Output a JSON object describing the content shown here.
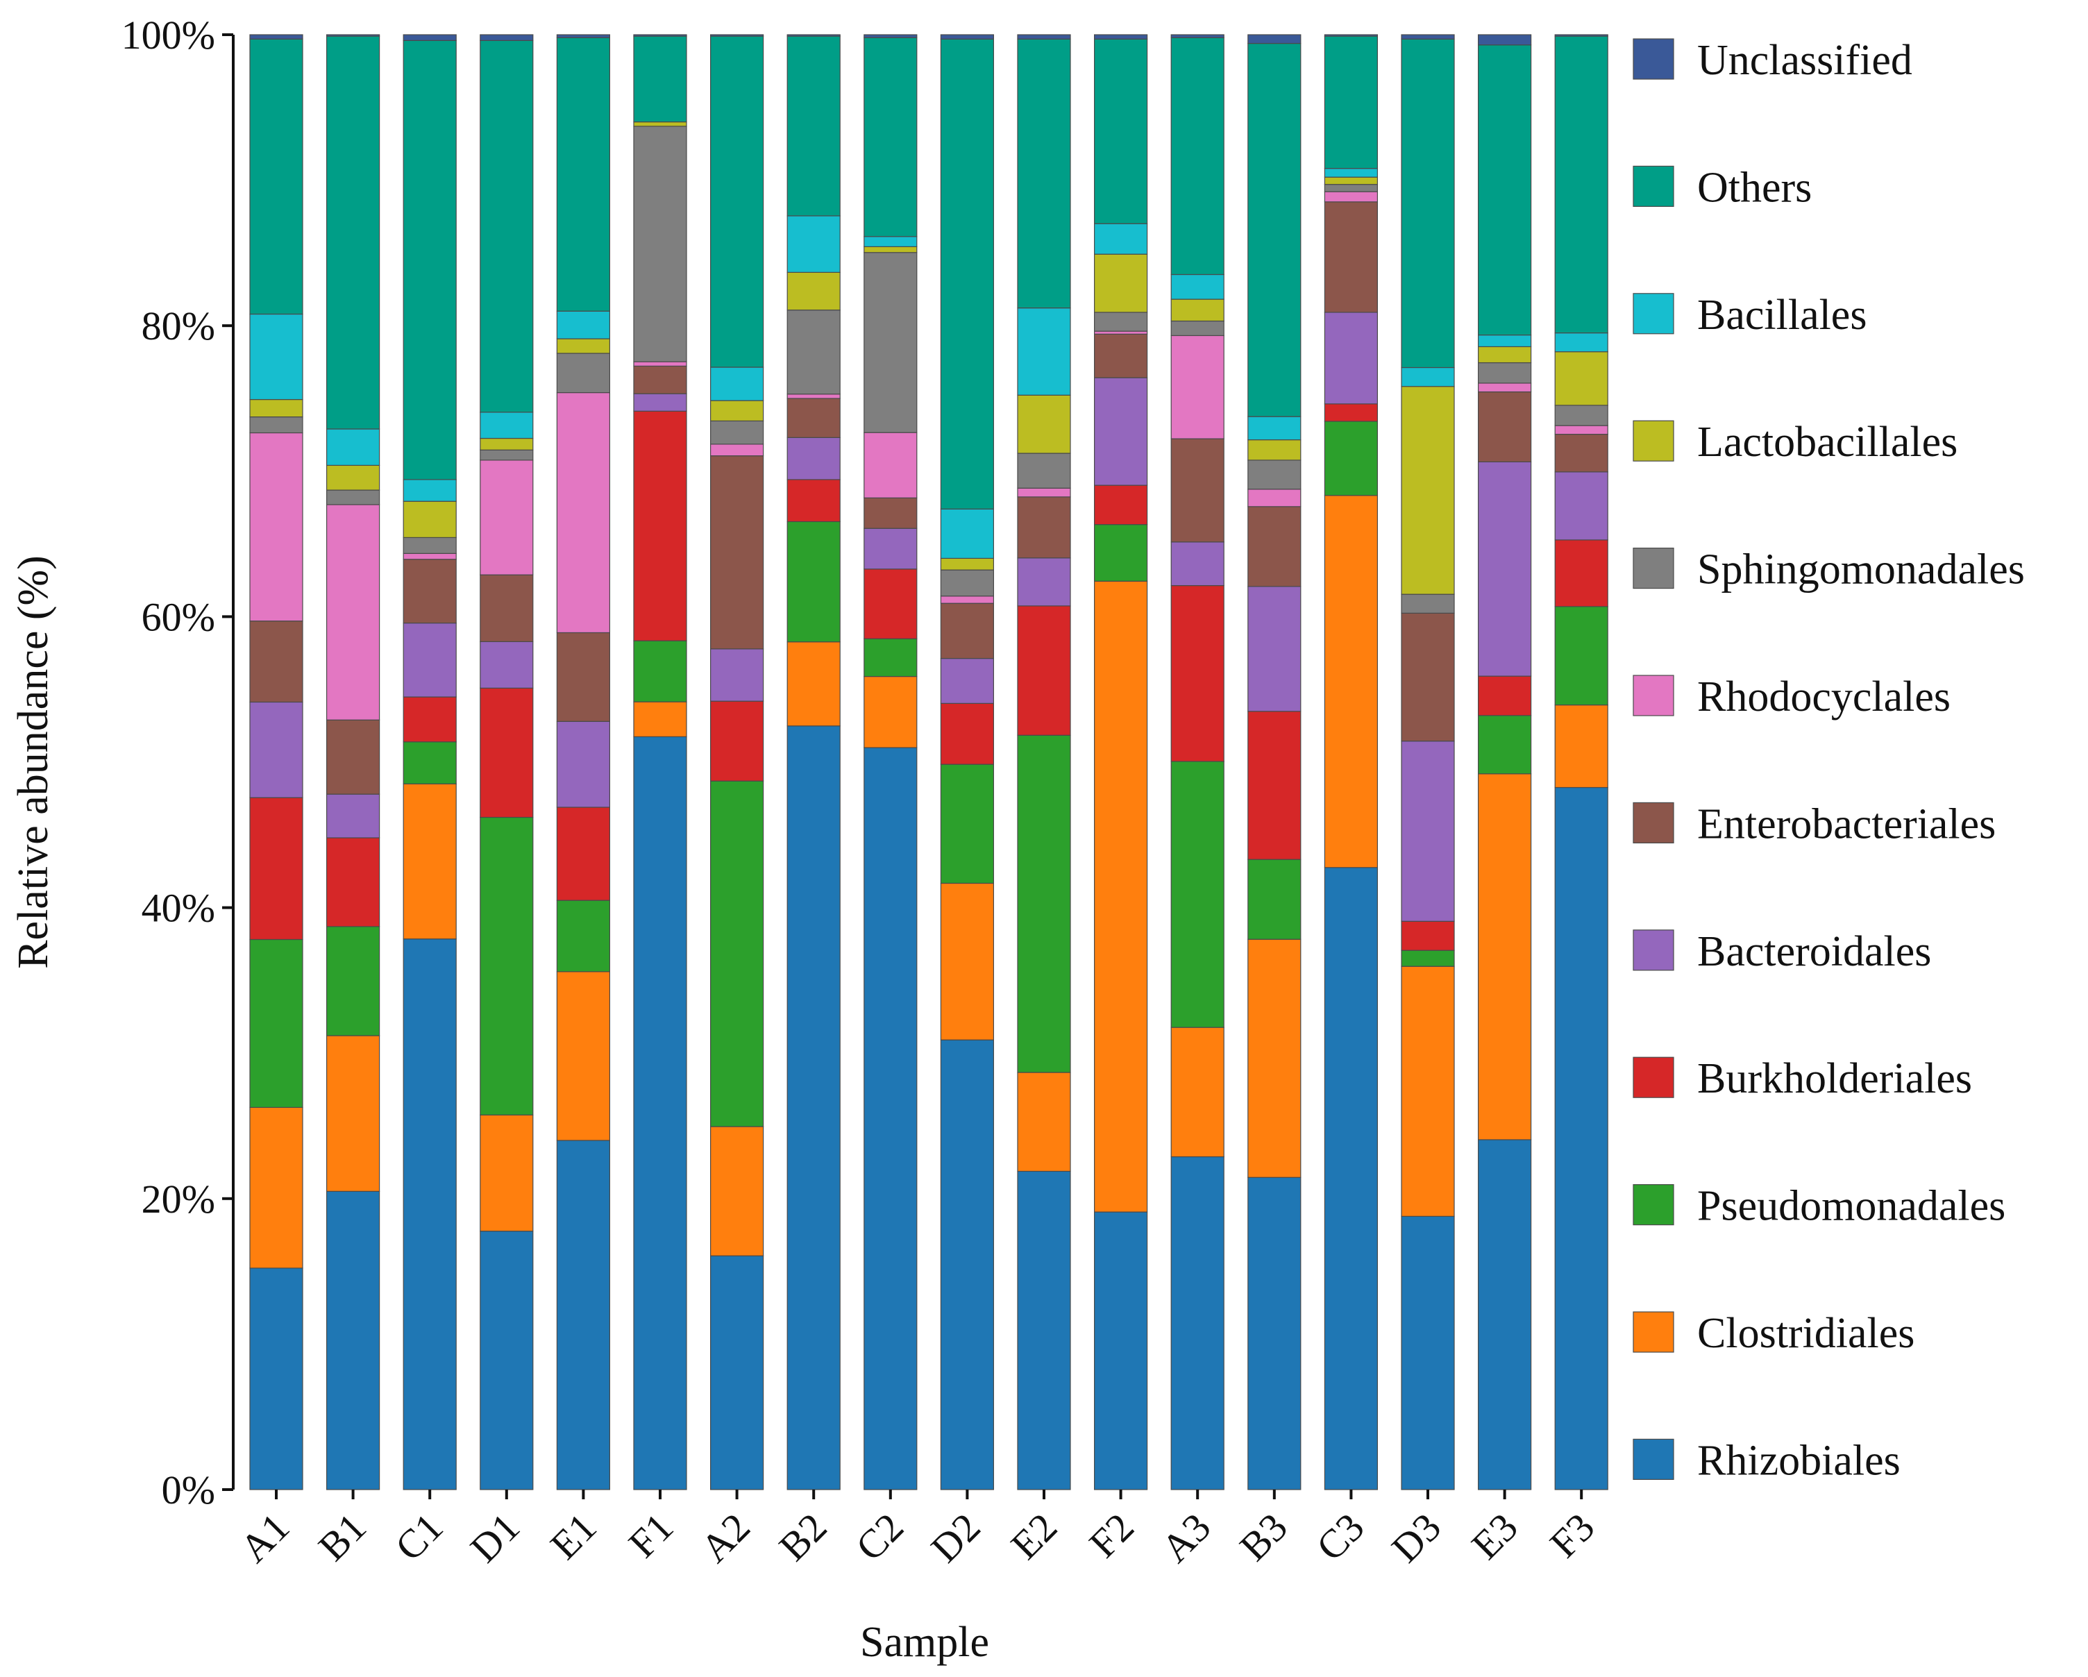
{
  "chart_data": {
    "type": "bar",
    "stacked": true,
    "percent": true,
    "title": "",
    "xlabel": "Sample",
    "ylabel": "Relative abundance (%)",
    "ylim": [
      0,
      100
    ],
    "yticks": [
      "0%",
      "20%",
      "40%",
      "60%",
      "80%",
      "100%"
    ],
    "legend_position": "right",
    "categories": [
      "A1",
      "B1",
      "C1",
      "D1",
      "E1",
      "F1",
      "A2",
      "B2",
      "C2",
      "D2",
      "E2",
      "F2",
      "A3",
      "B3",
      "C3",
      "D3",
      "E3",
      "F3"
    ],
    "series": [
      {
        "name": "Rhizobiales",
        "color": "#1f77b4",
        "values": [
          15.3,
          20.5,
          38.0,
          17.8,
          24.0,
          51.8,
          16.1,
          52.7,
          51.1,
          31.0,
          21.9,
          19.1,
          22.9,
          21.5,
          42.8,
          18.8,
          24.0,
          48.5
        ]
      },
      {
        "name": "Clostridiales",
        "color": "#ff7f0e",
        "values": [
          11.1,
          10.7,
          10.7,
          8.0,
          11.6,
          2.4,
          8.9,
          5.8,
          4.9,
          10.8,
          6.8,
          43.4,
          8.9,
          16.4,
          25.6,
          17.2,
          25.1,
          5.7
        ]
      },
      {
        "name": "Pseudomonadales",
        "color": "#2ca02c",
        "values": [
          11.6,
          7.5,
          2.9,
          20.5,
          4.9,
          4.2,
          23.8,
          8.3,
          2.6,
          8.2,
          23.2,
          3.9,
          18.3,
          5.5,
          5.1,
          1.1,
          4.0,
          6.8
        ]
      },
      {
        "name": "Burkholderiales",
        "color": "#d62728",
        "values": [
          9.8,
          6.1,
          3.1,
          8.9,
          6.4,
          15.8,
          5.5,
          2.9,
          4.8,
          4.2,
          8.9,
          2.7,
          12.1,
          10.2,
          1.2,
          2.0,
          2.7,
          4.6
        ]
      },
      {
        "name": "Bacteroidales",
        "color": "#9467bd",
        "values": [
          6.6,
          3.0,
          5.1,
          3.2,
          5.9,
          1.2,
          3.6,
          2.9,
          2.8,
          3.1,
          3.3,
          7.4,
          3.0,
          8.6,
          6.3,
          12.4,
          14.7,
          4.7
        ]
      },
      {
        "name": "Enterobacteriales",
        "color": "#8c564b",
        "values": [
          5.6,
          5.1,
          4.4,
          4.6,
          6.1,
          1.9,
          13.3,
          2.7,
          2.1,
          3.8,
          4.2,
          3.0,
          7.1,
          5.5,
          7.6,
          8.8,
          4.8,
          2.6
        ]
      },
      {
        "name": "Rhodocyclales",
        "color": "#e377c2",
        "values": [
          13.0,
          14.8,
          0.4,
          7.9,
          16.5,
          0.3,
          0.8,
          0.3,
          4.5,
          0.5,
          0.6,
          0.2,
          7.1,
          1.2,
          0.7,
          0.0,
          0.6,
          0.6
        ]
      },
      {
        "name": "Sphingomonadales",
        "color": "#7f7f7f",
        "values": [
          1.1,
          1.0,
          1.1,
          0.7,
          2.7,
          16.2,
          1.6,
          5.8,
          12.4,
          1.8,
          2.4,
          1.3,
          1.0,
          2.0,
          0.5,
          1.3,
          1.4,
          1.4
        ]
      },
      {
        "name": "Lactobacillales",
        "color": "#bcbd22",
        "values": [
          1.2,
          1.7,
          2.5,
          0.8,
          1.0,
          0.3,
          1.4,
          2.6,
          0.4,
          0.8,
          4.0,
          4.0,
          1.5,
          1.4,
          0.5,
          14.3,
          1.1,
          3.7
        ]
      },
      {
        "name": "Bacillales",
        "color": "#17becf",
        "values": [
          5.9,
          2.5,
          1.5,
          1.8,
          1.9,
          0.0,
          2.3,
          3.9,
          0.7,
          3.4,
          6.0,
          2.1,
          1.7,
          1.6,
          0.6,
          1.3,
          0.8,
          1.3
        ]
      },
      {
        "name": "Others",
        "color": "#009e87",
        "values": [
          19.0,
          27.0,
          30.3,
          25.6,
          18.8,
          5.9,
          22.8,
          12.4,
          13.7,
          32.4,
          18.5,
          12.7,
          16.3,
          25.7,
          9.1,
          22.6,
          19.9,
          20.5
        ]
      },
      {
        "name": "Unclassified",
        "color": "#3a5998",
        "values": [
          0.3,
          0.1,
          0.4,
          0.4,
          0.2,
          0.1,
          0.1,
          0.1,
          0.2,
          0.3,
          0.3,
          0.3,
          0.2,
          0.6,
          0.1,
          0.3,
          0.7,
          0.1
        ]
      }
    ]
  }
}
